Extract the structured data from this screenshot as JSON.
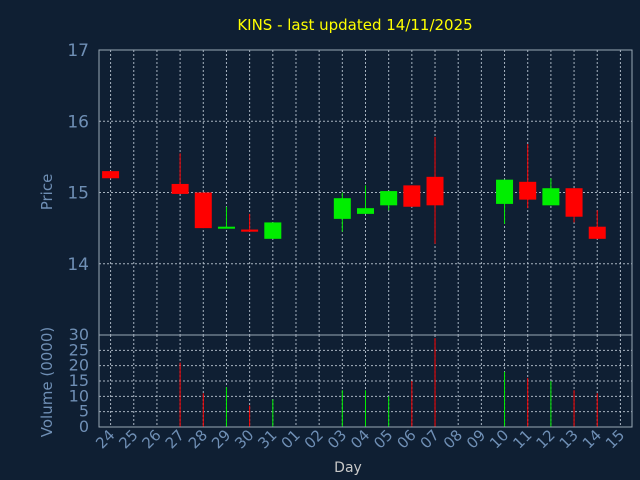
{
  "chart_data": {
    "type": "candlestick",
    "title": "KINS - last updated 14/11/2025",
    "price_panel": {
      "ylabel": "Price",
      "ylim": [
        13.0,
        17.0
      ],
      "yticks": [
        14,
        15,
        16,
        17
      ],
      "grid": true
    },
    "volume_panel": {
      "ylabel": "Volume (0000)",
      "ylim": [
        0,
        30
      ],
      "yticks": [
        0,
        5,
        10,
        15,
        20,
        25,
        30
      ],
      "grid": true
    },
    "xlabel": "Day",
    "x_ticks": [
      "24",
      "25",
      "26",
      "27",
      "28",
      "29",
      "30",
      "31",
      "01",
      "02",
      "03",
      "04",
      "05",
      "06",
      "07",
      "08",
      "09",
      "10",
      "11",
      "12",
      "13",
      "14",
      "15"
    ],
    "candles": [
      {
        "day": "24",
        "open": 15.3,
        "close": 15.2,
        "high": 15.3,
        "low": 15.2,
        "volume": 0
      },
      {
        "day": "27",
        "open": 15.12,
        "close": 14.98,
        "high": 15.55,
        "low": 14.98,
        "volume": 21
      },
      {
        "day": "28",
        "open": 15.0,
        "close": 14.5,
        "high": 15.0,
        "low": 14.5,
        "volume": 11
      },
      {
        "day": "29",
        "open": 14.5,
        "close": 14.52,
        "high": 14.8,
        "low": 14.5,
        "volume": 13
      },
      {
        "day": "30",
        "open": 14.48,
        "close": 14.45,
        "high": 14.7,
        "low": 14.45,
        "volume": 7
      },
      {
        "day": "31",
        "open": 14.35,
        "close": 14.58,
        "high": 14.58,
        "low": 14.35,
        "volume": 9
      },
      {
        "day": "03",
        "open": 14.63,
        "close": 14.92,
        "high": 15.0,
        "low": 14.45,
        "volume": 12
      },
      {
        "day": "04",
        "open": 14.7,
        "close": 14.78,
        "high": 15.1,
        "low": 14.7,
        "volume": 12
      },
      {
        "day": "05",
        "open": 14.82,
        "close": 15.02,
        "high": 15.02,
        "low": 14.75,
        "volume": 10
      },
      {
        "day": "06",
        "open": 15.1,
        "close": 14.8,
        "high": 15.1,
        "low": 14.8,
        "volume": 15
      },
      {
        "day": "07",
        "open": 15.22,
        "close": 14.82,
        "high": 15.78,
        "low": 14.28,
        "volume": 29
      },
      {
        "day": "10",
        "open": 14.84,
        "close": 15.18,
        "high": 15.18,
        "low": 14.56,
        "volume": 18
      },
      {
        "day": "11",
        "open": 15.15,
        "close": 14.9,
        "high": 15.68,
        "low": 14.78,
        "volume": 16
      },
      {
        "day": "12",
        "open": 14.82,
        "close": 15.06,
        "high": 15.2,
        "low": 14.82,
        "volume": 15
      },
      {
        "day": "13",
        "open": 15.06,
        "close": 14.66,
        "high": 15.06,
        "low": 14.58,
        "volume": 12
      },
      {
        "day": "14",
        "open": 14.52,
        "close": 14.35,
        "high": 14.75,
        "low": 14.35,
        "volume": 11
      }
    ],
    "colors": {
      "up": "#00ee00",
      "down": "#ff0000",
      "background": "#0f1f33",
      "title": "#ffff00",
      "axis_text": "#6f8fb5",
      "grid": "#b8c4d0"
    }
  }
}
